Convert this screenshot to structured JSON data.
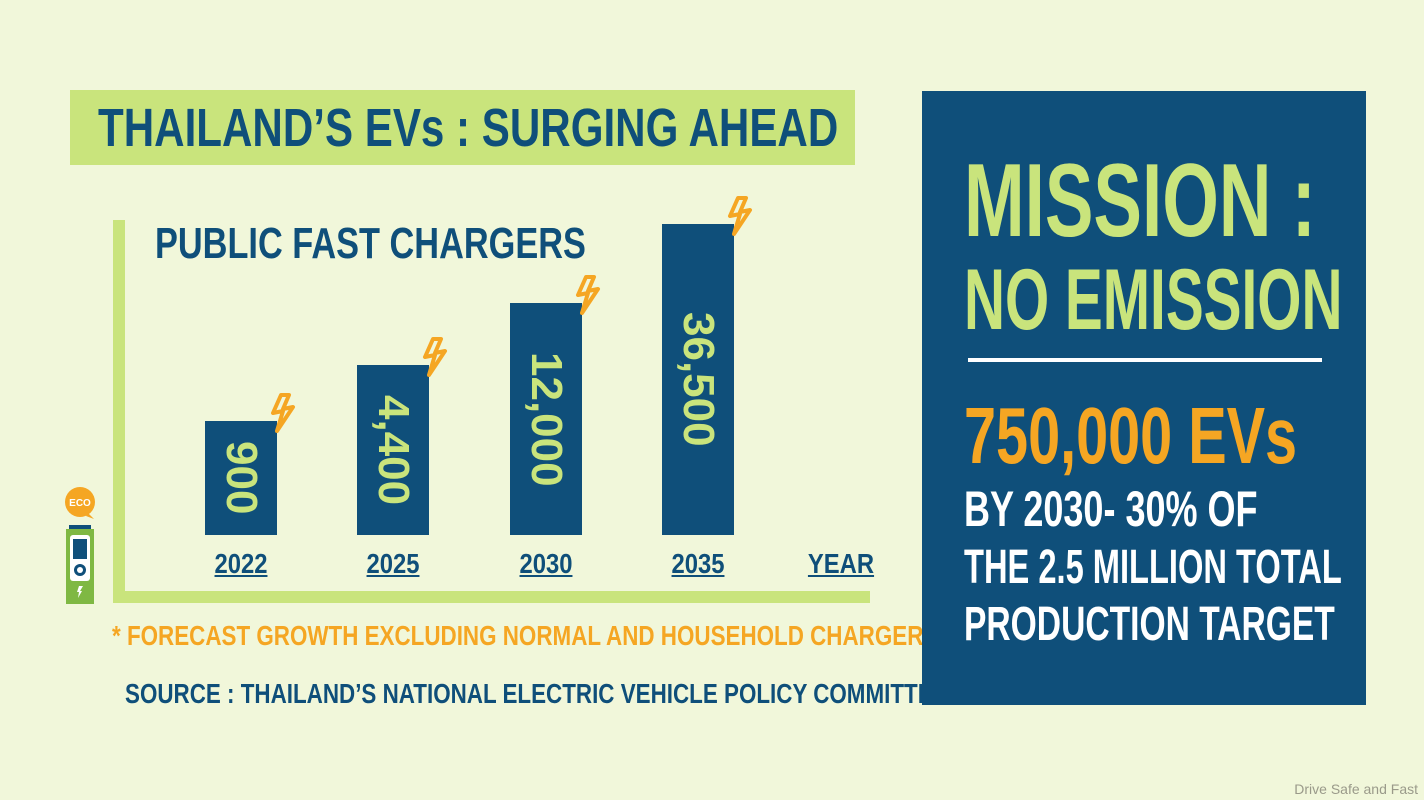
{
  "title": "THAILAND’S EVs : SURGING AHEAD",
  "chart_data": {
    "type": "bar",
    "title": "PUBLIC FAST CHARGERS",
    "xlabel": "YEAR",
    "ylabel": "",
    "categories": [
      "2022",
      "2025",
      "2030",
      "2035"
    ],
    "values": [
      900,
      4400,
      12000,
      36500
    ],
    "data_labels": [
      "900",
      "4,400",
      "12,000",
      "36,500"
    ],
    "grid": false
  },
  "footnote": "* FORECAST GROWTH EXCLUDING NORMAL AND HOUSEHOLD CHARGERS",
  "source": "SOURCE : THAILAND’S NATIONAL ELECTRIC VEHICLE POLICY COMMITTEE",
  "eco_badge": "ECO",
  "panel": {
    "line1": "MISSION :",
    "line2": "NO EMISSION",
    "highlight": "750,000 EVs",
    "body": [
      "BY 2030- 30% OF",
      "THE 2.5 MILLION TOTAL",
      "PRODUCTION TARGET"
    ]
  },
  "watermark": "Drive Safe and Fast",
  "colors": {
    "navy": "#0f4f7a",
    "lime": "#c9e47c",
    "orange": "#f5a623",
    "background": "#f1f7da"
  }
}
